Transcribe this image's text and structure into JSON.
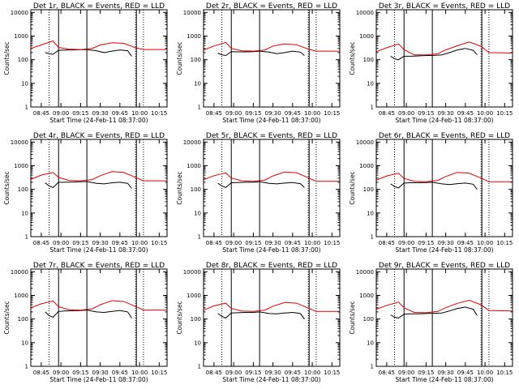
{
  "colors": {
    "events": "#000000",
    "lld": "#dd0000",
    "background": "#ffffff",
    "axes": "#000000"
  },
  "chart_data": [
    {
      "type": "line",
      "title": "Det 1r, BLACK = Events, RED = LLD",
      "xlabel": "Start Time (24-Feb-11 08:37:00)",
      "ylabel": "Counts/sec",
      "xticks": [
        "08:45",
        "09:00",
        "09:15",
        "09:30",
        "09:45",
        "10:00",
        "10:15"
      ],
      "yticks": [
        "1",
        "10",
        "100",
        "1000",
        "10000"
      ],
      "xlim_hours": [
        8.617,
        10.35
      ],
      "ylim": [
        1,
        13000
      ],
      "yscale": "log",
      "grid": false,
      "vlines_solid": [
        8.97,
        9.33,
        9.96
      ],
      "vlines_dotted": [
        8.85,
        9.95,
        10.05
      ],
      "series": [
        {
          "name": "BLACK = Events",
          "color": "#000000",
          "x": [
            8.8,
            8.85,
            8.9,
            8.97,
            9.05,
            9.15,
            9.25,
            9.33,
            9.45,
            9.55,
            9.65,
            9.75,
            9.85,
            9.9
          ],
          "y": [
            200,
            180,
            170,
            250,
            255,
            260,
            265,
            270,
            240,
            200,
            230,
            260,
            240,
            140
          ]
        },
        {
          "name": "RED = LLD",
          "color": "#dd0000",
          "x": [
            8.62,
            8.75,
            8.9,
            8.97,
            9.1,
            9.25,
            9.4,
            9.5,
            9.65,
            9.8,
            9.95,
            10.05,
            10.35
          ],
          "y": [
            300,
            420,
            620,
            330,
            280,
            270,
            300,
            420,
            520,
            490,
            320,
            270,
            270
          ]
        }
      ]
    },
    {
      "type": "line",
      "title": "Det 2r, BLACK = Events, RED = LLD",
      "xlabel": "Start Time (24-Feb-11 08:37:00)",
      "ylabel": "Counts/sec",
      "xticks": [
        "08:45",
        "09:00",
        "09:15",
        "09:30",
        "09:45",
        "10:00",
        "10:15"
      ],
      "yticks": [
        "1",
        "10",
        "100",
        "1000",
        "10000"
      ],
      "xlim_hours": [
        8.617,
        10.35
      ],
      "ylim": [
        1,
        13000
      ],
      "yscale": "log",
      "grid": false,
      "vlines_solid": [
        8.97,
        9.33,
        9.96
      ],
      "vlines_dotted": [
        8.85,
        9.95,
        10.05
      ],
      "series": [
        {
          "name": "BLACK = Events",
          "color": "#000000",
          "x": [
            8.8,
            8.85,
            8.9,
            8.97,
            9.05,
            9.15,
            9.25,
            9.33,
            9.45,
            9.55,
            9.65,
            9.75,
            9.85,
            9.9
          ],
          "y": [
            190,
            160,
            150,
            220,
            215,
            215,
            220,
            230,
            210,
            180,
            200,
            230,
            210,
            150
          ]
        },
        {
          "name": "RED = LLD",
          "color": "#dd0000",
          "x": [
            8.62,
            8.75,
            8.9,
            8.97,
            9.1,
            9.25,
            9.4,
            9.5,
            9.65,
            9.8,
            9.95,
            10.05,
            10.35
          ],
          "y": [
            260,
            380,
            540,
            300,
            240,
            230,
            260,
            380,
            470,
            430,
            280,
            230,
            230
          ]
        }
      ]
    },
    {
      "type": "line",
      "title": "Det 3r, BLACK = Events, RED = LLD",
      "xlabel": "Start Time (24-Feb-11 08:37:00)",
      "ylabel": "Counts/sec",
      "xticks": [
        "08:45",
        "09:00",
        "09:15",
        "09:30",
        "09:45",
        "10:00",
        "10:15"
      ],
      "yticks": [
        "1",
        "10",
        "100",
        "1000",
        "10000"
      ],
      "xlim_hours": [
        8.617,
        10.35
      ],
      "ylim": [
        1,
        13000
      ],
      "yscale": "log",
      "grid": false,
      "vlines_solid": [
        8.97,
        9.33,
        9.96
      ],
      "vlines_dotted": [
        8.85,
        9.95,
        10.05
      ],
      "series": [
        {
          "name": "BLACK = Events",
          "color": "#000000",
          "x": [
            8.8,
            8.85,
            8.9,
            8.97,
            9.05,
            9.15,
            9.25,
            9.33,
            9.45,
            9.55,
            9.65,
            9.75,
            9.85,
            9.9
          ],
          "y": [
            140,
            110,
            100,
            140,
            140,
            145,
            150,
            150,
            160,
            200,
            260,
            300,
            250,
            160
          ]
        },
        {
          "name": "RED = LLD",
          "color": "#dd0000",
          "x": [
            8.62,
            8.75,
            8.9,
            8.97,
            9.1,
            9.25,
            9.4,
            9.5,
            9.65,
            9.8,
            9.95,
            10.05,
            10.35
          ],
          "y": [
            220,
            320,
            460,
            270,
            160,
            160,
            180,
            260,
            390,
            560,
            370,
            200,
            190
          ]
        }
      ]
    },
    {
      "type": "line",
      "title": "Det 4r, BLACK = Events, RED = LLD",
      "xlabel": "Start Time (24-Feb-11 08:37:00)",
      "ylabel": "Counts/sec",
      "xticks": [
        "08:45",
        "09:00",
        "09:15",
        "09:30",
        "09:45",
        "10:00",
        "10:15"
      ],
      "yticks": [
        "1",
        "10",
        "100",
        "1000",
        "10000"
      ],
      "xlim_hours": [
        8.617,
        10.35
      ],
      "ylim": [
        1,
        13000
      ],
      "yscale": "log",
      "grid": false,
      "vlines_solid": [
        8.97,
        9.33,
        9.96
      ],
      "vlines_dotted": [
        8.85,
        9.95,
        10.05
      ],
      "series": [
        {
          "name": "BLACK = Events",
          "color": "#000000",
          "x": [
            8.8,
            8.85,
            8.9,
            8.97,
            9.05,
            9.15,
            9.25,
            9.33,
            9.45,
            9.55,
            9.65,
            9.75,
            9.85,
            9.9
          ],
          "y": [
            190,
            140,
            120,
            200,
            200,
            205,
            210,
            215,
            180,
            170,
            190,
            200,
            180,
            110
          ]
        },
        {
          "name": "RED = LLD",
          "color": "#dd0000",
          "x": [
            8.62,
            8.75,
            8.9,
            8.97,
            9.1,
            9.25,
            9.4,
            9.5,
            9.65,
            9.8,
            9.95,
            10.05,
            10.35
          ],
          "y": [
            270,
            400,
            520,
            320,
            240,
            230,
            260,
            380,
            560,
            520,
            320,
            230,
            230
          ]
        }
      ]
    },
    {
      "type": "line",
      "title": "Det 5r, BLACK = Events, RED = LLD",
      "xlabel": "Start Time (24-Feb-11 08:37:00)",
      "ylabel": "Counts/sec",
      "xticks": [
        "08:45",
        "09:00",
        "09:15",
        "09:30",
        "09:45",
        "10:00",
        "10:15"
      ],
      "yticks": [
        "1",
        "10",
        "100",
        "1000",
        "10000"
      ],
      "xlim_hours": [
        8.617,
        10.35
      ],
      "ylim": [
        1,
        13000
      ],
      "yscale": "log",
      "grid": false,
      "vlines_solid": [
        8.97,
        9.33,
        9.96
      ],
      "vlines_dotted": [
        8.85,
        9.95,
        10.05
      ],
      "series": [
        {
          "name": "BLACK = Events",
          "color": "#000000",
          "x": [
            8.8,
            8.85,
            8.9,
            8.97,
            9.05,
            9.15,
            9.25,
            9.33,
            9.45,
            9.55,
            9.65,
            9.75,
            9.85,
            9.9
          ],
          "y": [
            180,
            140,
            120,
            190,
            195,
            200,
            200,
            210,
            180,
            170,
            185,
            195,
            175,
            120
          ]
        },
        {
          "name": "RED = LLD",
          "color": "#dd0000",
          "x": [
            8.62,
            8.75,
            8.9,
            8.97,
            9.1,
            9.25,
            9.4,
            9.5,
            9.65,
            9.8,
            9.95,
            10.05,
            10.35
          ],
          "y": [
            260,
            380,
            500,
            300,
            230,
            220,
            250,
            370,
            540,
            500,
            310,
            220,
            220
          ]
        }
      ]
    },
    {
      "type": "line",
      "title": "Det 6r, BLACK = Events, RED = LLD",
      "xlabel": "Start Time (24-Feb-11 08:37:00)",
      "ylabel": "Counts/sec",
      "xticks": [
        "08:45",
        "09:00",
        "09:15",
        "09:30",
        "09:45",
        "10:00",
        "10:15"
      ],
      "yticks": [
        "1",
        "10",
        "100",
        "1000",
        "10000"
      ],
      "xlim_hours": [
        8.617,
        10.35
      ],
      "ylim": [
        1,
        13000
      ],
      "yscale": "log",
      "grid": false,
      "vlines_solid": [
        8.97,
        9.33,
        9.96
      ],
      "vlines_dotted": [
        8.85,
        9.95,
        10.05
      ],
      "series": [
        {
          "name": "BLACK = Events",
          "color": "#000000",
          "x": [
            8.8,
            8.85,
            8.9,
            8.97,
            9.05,
            9.15,
            9.25,
            9.33,
            9.45,
            9.55,
            9.65,
            9.75,
            9.85,
            9.9
          ],
          "y": [
            170,
            130,
            115,
            185,
            190,
            190,
            195,
            200,
            170,
            160,
            175,
            185,
            165,
            100
          ]
        },
        {
          "name": "RED = LLD",
          "color": "#dd0000",
          "x": [
            8.62,
            8.75,
            8.9,
            8.97,
            9.1,
            9.25,
            9.4,
            9.5,
            9.65,
            9.8,
            9.95,
            10.05,
            10.35
          ],
          "y": [
            250,
            370,
            480,
            290,
            220,
            210,
            240,
            350,
            520,
            480,
            300,
            210,
            210
          ]
        }
      ]
    },
    {
      "type": "line",
      "title": "Det 7r, BLACK = Events, RED = LLD",
      "xlabel": "Start Time (24-Feb-11 08:37:00)",
      "ylabel": "Counts/sec",
      "xticks": [
        "08:45",
        "09:00",
        "09:15",
        "09:30",
        "09:45",
        "10:00",
        "10:15"
      ],
      "yticks": [
        "1",
        "10",
        "100",
        "1000",
        "10000"
      ],
      "xlim_hours": [
        8.617,
        10.35
      ],
      "ylim": [
        1,
        13000
      ],
      "yscale": "log",
      "grid": false,
      "vlines_solid": [
        8.97,
        9.33,
        9.96
      ],
      "vlines_dotted": [
        8.85,
        9.95,
        10.05
      ],
      "series": [
        {
          "name": "BLACK = Events",
          "color": "#000000",
          "x": [
            8.8,
            8.85,
            8.9,
            8.97,
            9.05,
            9.15,
            9.25,
            9.33,
            9.45,
            9.55,
            9.65,
            9.75,
            9.85,
            9.9
          ],
          "y": [
            200,
            140,
            120,
            210,
            220,
            225,
            230,
            240,
            200,
            190,
            210,
            230,
            200,
            110
          ]
        },
        {
          "name": "RED = LLD",
          "color": "#dd0000",
          "x": [
            8.62,
            8.75,
            8.9,
            8.97,
            9.1,
            9.25,
            9.4,
            9.5,
            9.65,
            9.8,
            9.95,
            10.05,
            10.35
          ],
          "y": [
            300,
            440,
            580,
            330,
            250,
            240,
            270,
            400,
            600,
            550,
            340,
            240,
            240
          ]
        }
      ]
    },
    {
      "type": "line",
      "title": "Det 8r, BLACK = Events, RED = LLD",
      "xlabel": "Start Time (24-Feb-11 08:37:00)",
      "ylabel": "Counts/sec",
      "xticks": [
        "08:45",
        "09:00",
        "09:15",
        "09:30",
        "09:45",
        "10:00",
        "10:15"
      ],
      "yticks": [
        "1",
        "10",
        "100",
        "1000",
        "10000"
      ],
      "xlim_hours": [
        8.617,
        10.35
      ],
      "ylim": [
        1,
        13000
      ],
      "yscale": "log",
      "grid": false,
      "vlines_solid": [
        8.97,
        9.33,
        9.96
      ],
      "vlines_dotted": [
        8.85,
        9.95,
        10.05
      ],
      "series": [
        {
          "name": "BLACK = Events",
          "color": "#000000",
          "x": [
            8.8,
            8.85,
            8.9,
            8.97,
            9.05,
            9.15,
            9.25,
            9.33,
            9.45,
            9.55,
            9.65,
            9.75,
            9.85,
            9.9
          ],
          "y": [
            170,
            130,
            110,
            180,
            185,
            190,
            190,
            200,
            170,
            165,
            180,
            190,
            170,
            100
          ]
        },
        {
          "name": "RED = LLD",
          "color": "#dd0000",
          "x": [
            8.62,
            8.75,
            8.9,
            8.97,
            9.1,
            9.25,
            9.4,
            9.5,
            9.65,
            9.8,
            9.95,
            10.05,
            10.35
          ],
          "y": [
            240,
            360,
            470,
            280,
            220,
            210,
            240,
            350,
            500,
            470,
            290,
            210,
            210
          ]
        }
      ]
    },
    {
      "type": "line",
      "title": "Det 9r, BLACK = Events, RED = LLD",
      "xlabel": "Start Time (24-Feb-11 08:37:00)",
      "ylabel": "Counts/sec",
      "xticks": [
        "08:45",
        "09:00",
        "09:15",
        "09:30",
        "09:45",
        "10:00",
        "10:15"
      ],
      "yticks": [
        "1",
        "10",
        "100",
        "1000",
        "10000"
      ],
      "xlim_hours": [
        8.617,
        10.35
      ],
      "ylim": [
        1,
        13000
      ],
      "yscale": "log",
      "grid": false,
      "vlines_solid": [
        8.97,
        9.33,
        9.96
      ],
      "vlines_dotted": [
        8.85,
        9.95,
        10.05
      ],
      "series": [
        {
          "name": "BLACK = Events",
          "color": "#000000",
          "x": [
            8.8,
            8.85,
            8.9,
            8.97,
            9.05,
            9.15,
            9.25,
            9.33,
            9.45,
            9.55,
            9.65,
            9.75,
            9.85,
            9.9
          ],
          "y": [
            150,
            120,
            110,
            160,
            165,
            165,
            170,
            175,
            180,
            220,
            280,
            320,
            260,
            140
          ]
        },
        {
          "name": "RED = LLD",
          "color": "#dd0000",
          "x": [
            8.62,
            8.75,
            8.9,
            8.97,
            9.1,
            9.25,
            9.4,
            9.5,
            9.65,
            9.8,
            9.95,
            10.05,
            10.35
          ],
          "y": [
            260,
            380,
            520,
            300,
            190,
            185,
            210,
            300,
            460,
            620,
            400,
            230,
            220
          ]
        }
      ]
    }
  ]
}
